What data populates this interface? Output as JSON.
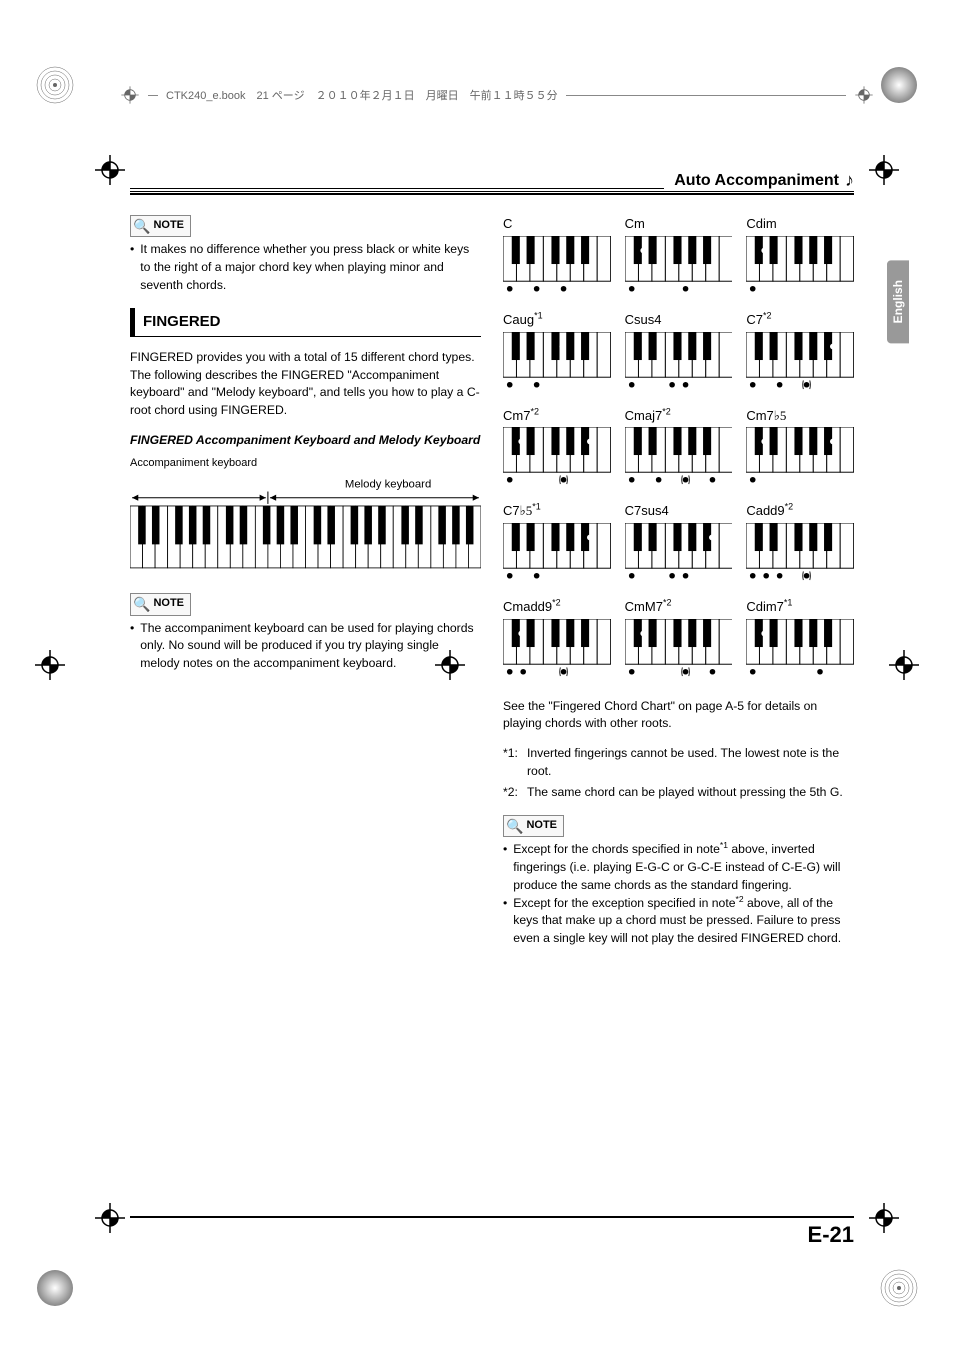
{
  "header": {
    "file_info": "CTK240_e.book　21 ページ　２０１０年２月１日　月曜日　午前１１時５５分"
  },
  "section_header": "Auto Accompaniment",
  "language_tab": "English",
  "page_number": "E-21",
  "left": {
    "note1_label": "NOTE",
    "note1_text": "It makes no difference whether you press black or white keys to the right of a major chord key when playing minor and seventh chords.",
    "heading": "FINGERED",
    "para1": "FINGERED provides you with a total of 15 different chord types. The following describes the FINGERED \"Accompaniment keyboard\" and \"Melody keyboard\", and tells you how to play a C-root chord using FINGERED.",
    "subhead": "FINGERED Accompaniment Keyboard and Melody Keyboard",
    "kbd_label1": "Accompaniment keyboard",
    "kbd_label2": "Melody keyboard",
    "note2_label": "NOTE",
    "note2_text": "The accompaniment keyboard can be used for playing chords only. No sound will be produced if you try playing single melody notes on the accompaniment keyboard."
  },
  "chords": [
    {
      "name": "C",
      "dots": [
        0,
        2,
        4
      ],
      "ghost": []
    },
    {
      "name": "Cm",
      "dots": [
        0,
        1.5,
        4
      ],
      "ghost": []
    },
    {
      "name": "Cdim",
      "dots": [
        0,
        1.5,
        3.5
      ],
      "ghost": []
    },
    {
      "name": "Caug",
      "sup": "*1",
      "dots": [
        0,
        2,
        4.5
      ],
      "ghost": []
    },
    {
      "name": "Csus4",
      "dots": [
        0,
        3,
        4
      ],
      "ghost": []
    },
    {
      "name": "C7",
      "sup": "*2",
      "dots": [
        0,
        2,
        6.5
      ],
      "ghost": [
        4
      ]
    },
    {
      "name": "Cm7",
      "sup": "*2",
      "dots": [
        0,
        1.5,
        6.5
      ],
      "ghost": [
        4
      ]
    },
    {
      "name": "Cmaj7",
      "sup": "*2",
      "dots": [
        0,
        2,
        6
      ],
      "ghost": [
        4
      ]
    },
    {
      "name": "Cm7♭5",
      "flat": "♭5",
      "dots": [
        0,
        1.5,
        3.5,
        6.5
      ],
      "ghost": []
    },
    {
      "name": "C7♭5",
      "flat": "♭5",
      "sup": "*1",
      "dots": [
        0,
        2,
        3.5,
        6.5
      ],
      "ghost": []
    },
    {
      "name": "C7sus4",
      "dots": [
        0,
        3,
        4,
        6.5
      ],
      "ghost": []
    },
    {
      "name": "Cadd9",
      "sup": "*2",
      "dots": [
        0,
        1,
        2
      ],
      "ghost": [
        4
      ]
    },
    {
      "name": "Cmadd9",
      "sup": "*2",
      "dots": [
        0,
        1,
        1.5
      ],
      "ghost": [
        4
      ]
    },
    {
      "name": "CmM7",
      "sup": "*2",
      "dots": [
        0,
        1.5,
        6
      ],
      "ghost": [
        4
      ]
    },
    {
      "name": "Cdim7",
      "sup": "*1",
      "dots": [
        0,
        1.5,
        3.5,
        5
      ],
      "ghost": []
    }
  ],
  "right": {
    "see_text": "See the \"Fingered Chord Chart\" on page A-5 for details on playing chords with other roots.",
    "fn1_label": "*1:",
    "fn1_text": "Inverted fingerings cannot be used. The lowest note is the root.",
    "fn2_label": "*2:",
    "fn2_text": "The same chord can be played without pressing the 5th G.",
    "note3_label": "NOTE",
    "note3_a_pre": "Except for the chords specified in note",
    "note3_a_sup": "*1",
    "note3_a_post": " above, inverted fingerings (i.e. playing E-G-C or G-C-E instead of C-E-G) will produce the same chords as the standard fingering.",
    "note3_b_pre": "Except for the exception specified in note",
    "note3_b_sup": "*2",
    "note3_b_post": " above, all of the keys that make up a chord must be pressed. Failure to press even a single key will not play the desired FINGERED chord."
  },
  "colors": {
    "text": "#000000",
    "rule": "#000000",
    "header_text": "#666666",
    "tab_bg": "#999999",
    "tab_text": "#ffffff"
  }
}
